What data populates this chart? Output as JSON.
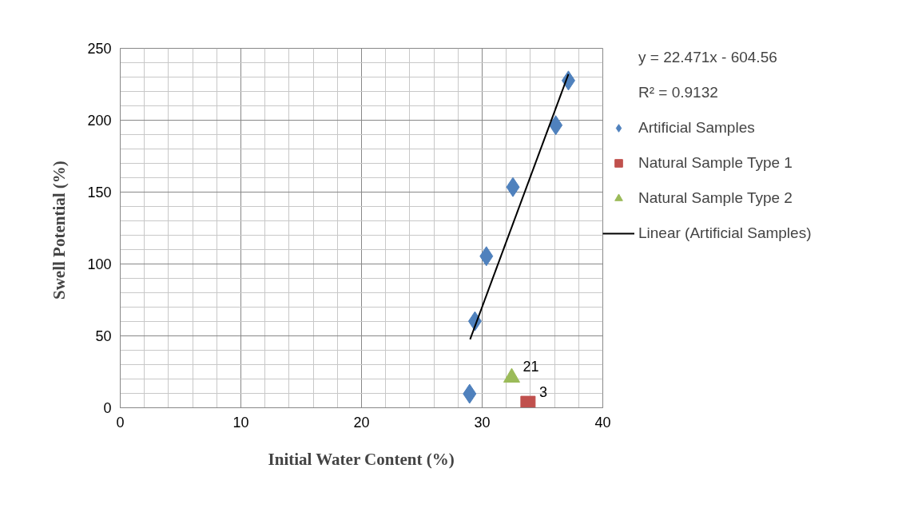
{
  "chart_data": {
    "type": "scatter",
    "xlabel": "Initial Water Content (%)",
    "ylabel": "Swell  Potential (%)",
    "xlim": [
      0,
      40
    ],
    "ylim": [
      0,
      250
    ],
    "xticks": [
      0,
      {
        "value": 2,
        "label": null
      },
      {
        "value": 4,
        "label": null
      },
      {
        "value": 6,
        "label": null
      },
      {
        "value": 8,
        "label": null
      },
      10,
      {
        "value": 12,
        "label": null
      },
      {
        "value": 14,
        "label": null
      },
      {
        "value": 16,
        "label": null
      },
      {
        "value": 18,
        "label": null
      },
      20,
      {
        "value": 22,
        "label": null
      },
      {
        "value": 24,
        "label": null
      },
      {
        "value": 26,
        "label": null
      },
      {
        "value": 28,
        "label": null
      },
      30,
      {
        "value": 32,
        "label": null
      },
      {
        "value": 34,
        "label": null
      },
      {
        "value": 36,
        "label": null
      },
      {
        "value": 38,
        "label": null
      },
      40
    ],
    "yticks": [
      0,
      {
        "value": 10,
        "label": null
      },
      {
        "value": 20,
        "label": null
      },
      {
        "value": 30,
        "label": null
      },
      {
        "value": 40,
        "label": null
      },
      50,
      {
        "value": 60,
        "label": null
      },
      {
        "value": 70,
        "label": null
      },
      {
        "value": 80,
        "label": null
      },
      {
        "value": 90,
        "label": null
      },
      100,
      {
        "value": 110,
        "label": null
      },
      {
        "value": 120,
        "label": null
      },
      {
        "value": 130,
        "label": null
      },
      {
        "value": 140,
        "label": null
      },
      150,
      {
        "value": 160,
        "label": null
      },
      {
        "value": 170,
        "label": null
      },
      {
        "value": 180,
        "label": null
      },
      {
        "value": 190,
        "label": null
      },
      200,
      {
        "value": 210,
        "label": null
      },
      {
        "value": 220,
        "label": null
      },
      {
        "value": 230,
        "label": null
      },
      {
        "value": 240,
        "label": null
      },
      250
    ],
    "grid": true,
    "legend": "right",
    "annotations": [
      "y = 22.471x - 604.56",
      "R² = 0.9132"
    ],
    "series": [
      {
        "name": "Artificial Samples",
        "marker": "diamond",
        "color": "#4f81bd",
        "x": [
          28.96,
          29.4,
          30.35,
          32.55,
          36.1,
          37.15
        ],
        "values": [
          9.7,
          60.2,
          105.4,
          153.5,
          196.5,
          227.6
        ]
      },
      {
        "name": "Natural Sample Type 1",
        "marker": "square",
        "color": "#c0504d",
        "x": [
          33.8
        ],
        "values": [
          3
        ],
        "value_labels": [
          "3"
        ]
      },
      {
        "name": "Natural Sample Type 2",
        "marker": "triangle",
        "color": "#9bbb59",
        "x": [
          32.45
        ],
        "values": [
          21
        ],
        "value_labels": [
          "21"
        ]
      },
      {
        "name": "Linear (Artificial Samples)",
        "type": "line",
        "marker": "none",
        "line_style": "solid",
        "color": "#000000",
        "x": [
          29.0,
          37.15
        ],
        "values": [
          47.6,
          232.0
        ]
      }
    ]
  }
}
